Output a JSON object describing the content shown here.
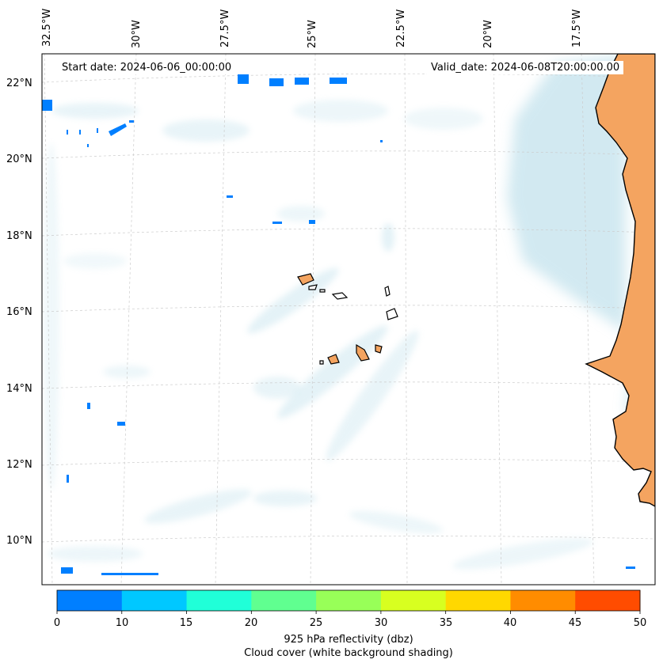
{
  "map": {
    "start_date": "Start date: 2024-06-06_00:00:00",
    "valid_date": "Valid_date: 2024-06-08T20:00:00.00",
    "lon_labels": [
      "32.5°W",
      "30°W",
      "27.5°W",
      "25°W",
      "22.5°W",
      "20°W",
      "17.5°W"
    ],
    "lat_labels": [
      "22°N",
      "20°N",
      "18°N",
      "16°N",
      "14°N",
      "12°N",
      "10°N"
    ],
    "land_color": "#f4a460",
    "cloud_color": "#add8e6"
  },
  "colorbar": {
    "ticks": [
      "0",
      "10",
      "15",
      "20",
      "25",
      "30",
      "35",
      "40",
      "45",
      "50"
    ],
    "colors": [
      "#007fff",
      "#00c8ff",
      "#20ffd8",
      "#60ff90",
      "#98ff58",
      "#d8ff20",
      "#ffd800",
      "#ff8c00",
      "#ff4c00"
    ],
    "label_line1": "925 hPa reflectivity (dbz)",
    "label_line2": "Cloud cover (white background shading)"
  }
}
